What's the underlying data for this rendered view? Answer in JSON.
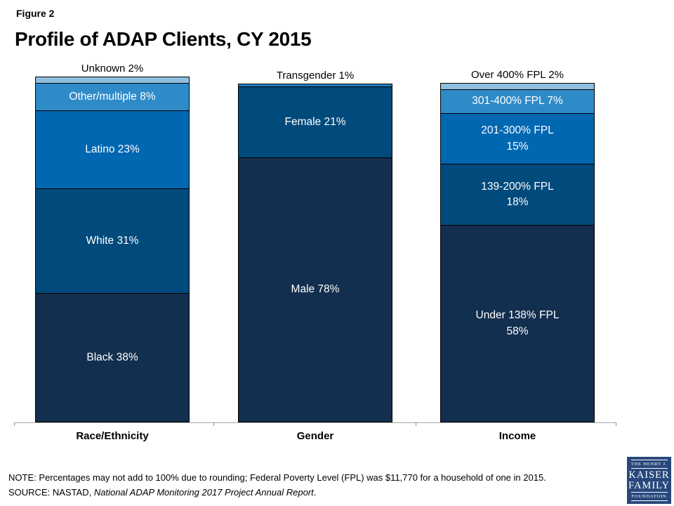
{
  "header": {
    "figure_label": "Figure 2",
    "title": "Profile of ADAP Clients, CY 2015"
  },
  "chart_data": {
    "type": "bar",
    "subtype": "stacked-vertical-100",
    "title": "Profile of ADAP Clients, CY 2015",
    "categories": [
      "Race/Ethnicity",
      "Gender",
      "Income"
    ],
    "ylim": [
      0,
      102
    ],
    "grid": false,
    "legend": "none (labels inside segments)",
    "axis_color": "#A6A6A6",
    "bars": [
      {
        "category": "Race/Ethnicity",
        "top_outside_label": "Unknown 2%",
        "segments": [
          {
            "label": "Black 38%",
            "value": 38,
            "color": "#132F4F",
            "label_inside": true
          },
          {
            "label": "White 31%",
            "value": 31,
            "color": "#004A7C",
            "label_inside": true
          },
          {
            "label": "Latino 23%",
            "value": 23,
            "color": "#0067B1",
            "label_inside": true
          },
          {
            "label": "Other/multiple 8%",
            "value": 8,
            "color": "#2E8BC8",
            "label_inside": true
          },
          {
            "label": "Unknown 2%",
            "value": 2,
            "color": "#8FBEDE",
            "label_inside": false
          }
        ]
      },
      {
        "category": "Gender",
        "top_outside_label": "Transgender 1%",
        "segments": [
          {
            "label": "Male 78%",
            "value": 78,
            "color": "#132F4F",
            "label_inside": true
          },
          {
            "label": "Female 21%",
            "value": 21,
            "color": "#004A7C",
            "label_inside": true
          },
          {
            "label": "Transgender 1%",
            "value": 1,
            "color": "#1E7FC4",
            "label_inside": false
          }
        ]
      },
      {
        "category": "Income",
        "top_outside_label": "Over 400% FPL 2%",
        "segments": [
          {
            "label": "Under 138% FPL\n58%",
            "value": 58,
            "color": "#132F4F",
            "label_inside": true
          },
          {
            "label": "139-200% FPL\n18%",
            "value": 18,
            "color": "#004A7C",
            "label_inside": true
          },
          {
            "label": "201-300% FPL\n15%",
            "value": 15,
            "color": "#0067B1",
            "label_inside": true
          },
          {
            "label": "301-400% FPL 7%",
            "value": 7,
            "color": "#2E8BC8",
            "label_inside": true
          },
          {
            "label": "Over 400% FPL 2%",
            "value": 2,
            "color": "#8FBEDE",
            "label_inside": false
          }
        ]
      }
    ]
  },
  "footer": {
    "note": "NOTE: Percentages may not add to 100% due to rounding; Federal Poverty Level (FPL) was $11,770 for a household of one in 2015.",
    "source_prefix": "SOURCE: NASTAD, ",
    "source_italic": "National ADAP Monitoring 2017 Project Annual Report",
    "source_suffix": "."
  },
  "logo": {
    "line1": "THE HENRY J.",
    "line2": "KAISER",
    "line3": "FAMILY",
    "line4": "FOUNDATION",
    "bg_color": "#28487C"
  }
}
